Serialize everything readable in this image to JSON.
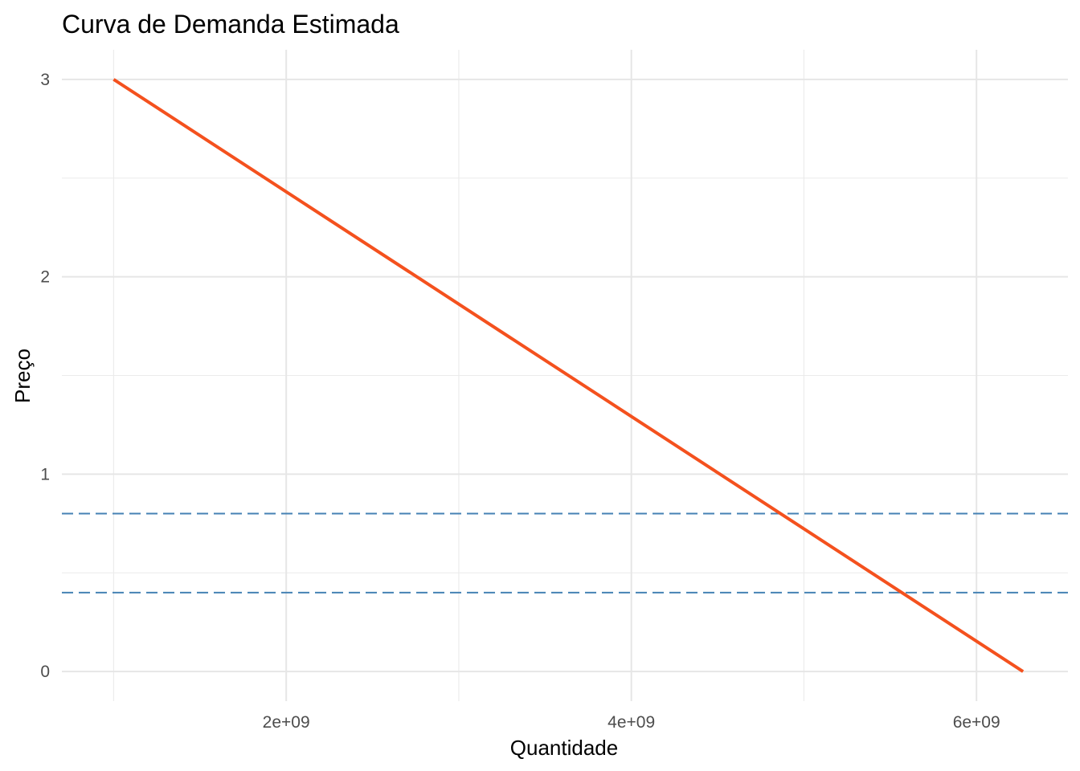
{
  "chart_data": {
    "type": "line",
    "title": "Curva de Demanda Estimada",
    "xlabel": "Quantidade",
    "ylabel": "Preço",
    "xlim": [
      700000000,
      6530000000
    ],
    "ylim": [
      -0.15,
      3.15
    ],
    "x_ticks": [
      2000000000,
      4000000000,
      6000000000
    ],
    "x_tick_labels": [
      "2e+09",
      "4e+09",
      "6e+09"
    ],
    "x_minor_ticks": [
      1000000000,
      3000000000,
      5000000000
    ],
    "y_ticks": [
      0,
      1,
      2,
      3
    ],
    "y_tick_labels": [
      "0",
      "1",
      "2",
      "3"
    ],
    "y_minor_ticks": [
      0.5,
      1.5,
      2.5
    ],
    "grid": true,
    "series": [
      {
        "x": [
          1000000000,
          6270000000
        ],
        "y": [
          3,
          0
        ],
        "color": "#f4511e"
      }
    ],
    "hlines": [
      {
        "y": 0.8,
        "color": "#4682b4",
        "style": "dashed"
      },
      {
        "y": 0.4,
        "color": "#4682b4",
        "style": "dashed"
      }
    ]
  }
}
